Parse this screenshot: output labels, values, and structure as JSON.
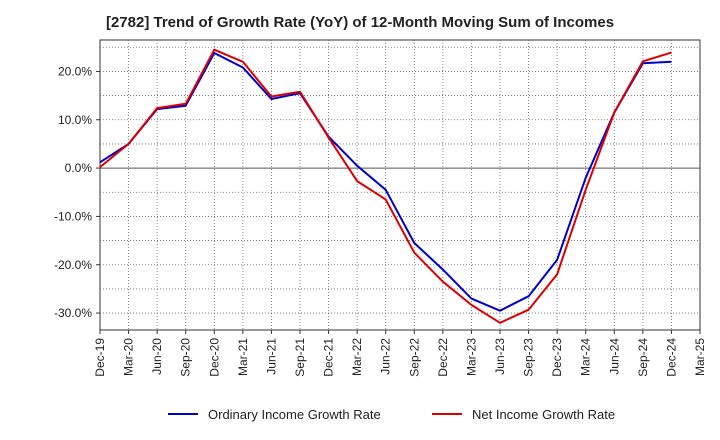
{
  "chart_data": {
    "type": "line",
    "title": "[2782]  Trend of Growth Rate (YoY) of 12-Month Moving Sum of Incomes",
    "xlabel": "",
    "ylabel": "",
    "categories": [
      "Dec-19",
      "Mar-20",
      "Jun-20",
      "Sep-20",
      "Dec-20",
      "Mar-21",
      "Jun-21",
      "Sep-21",
      "Dec-21",
      "Mar-22",
      "Jun-22",
      "Sep-22",
      "Dec-22",
      "Mar-23",
      "Jun-23",
      "Sep-23",
      "Dec-23",
      "Mar-24",
      "Jun-24",
      "Sep-24",
      "Dec-24",
      "Mar-25"
    ],
    "y_ticks": [
      20,
      10,
      0,
      -10,
      -20,
      -30
    ],
    "y_tick_labels": [
      "20.0%",
      "10.0%",
      "0.0%",
      "-10.0%",
      "-20.0%",
      "-30.0%"
    ],
    "ylim": [
      -33.5,
      26.5
    ],
    "grid": true,
    "zero_line": true,
    "legend_position": "bottom",
    "series": [
      {
        "name": "Ordinary Income Growth Rate",
        "color": "#0000cc",
        "values": [
          1.2,
          5.0,
          12.2,
          12.9,
          23.8,
          20.8,
          14.3,
          15.5,
          6.5,
          0.5,
          -4.5,
          -15.5,
          -21.0,
          -27.0,
          -29.5,
          -26.5,
          -19.0,
          -2.0,
          11.5,
          21.7,
          22.0,
          null
        ]
      },
      {
        "name": "Net Income Growth Rate",
        "color": "#dd0000",
        "values": [
          0.2,
          5.0,
          12.4,
          13.3,
          24.5,
          22.0,
          14.8,
          15.8,
          6.3,
          -2.7,
          -6.5,
          -17.5,
          -23.5,
          -28.3,
          -32.0,
          -29.3,
          -22.0,
          -4.5,
          11.5,
          22.1,
          23.9,
          null
        ]
      }
    ]
  }
}
